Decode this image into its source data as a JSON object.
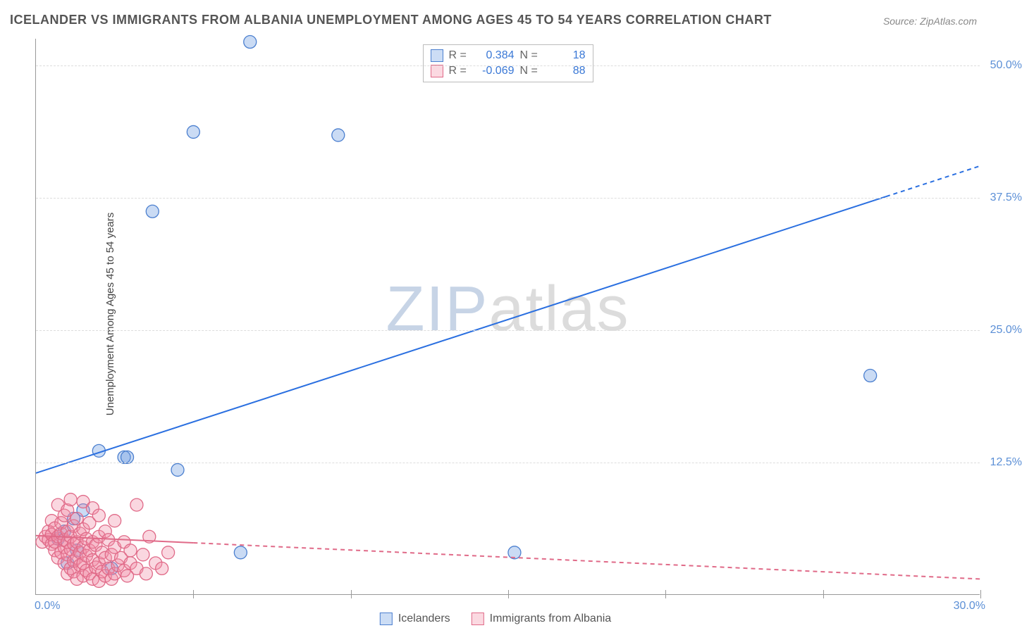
{
  "title": "ICELANDER VS IMMIGRANTS FROM ALBANIA UNEMPLOYMENT AMONG AGES 45 TO 54 YEARS CORRELATION CHART",
  "source_prefix": "Source: ",
  "source": "ZipAtlas.com",
  "ylabel": "Unemployment Among Ages 45 to 54 years",
  "watermark_a": "ZIP",
  "watermark_b": "atlas",
  "chart": {
    "type": "scatter",
    "xlim": [
      0,
      30
    ],
    "ylim": [
      0,
      52.5
    ],
    "x_corner_left": "0.0%",
    "x_corner_right": "30.0%",
    "x_ticks": [
      5,
      10,
      15,
      20,
      25,
      30
    ],
    "y_ticks": [
      {
        "v": 12.5,
        "label": "12.5%"
      },
      {
        "v": 25.0,
        "label": "25.0%"
      },
      {
        "v": 37.5,
        "label": "37.5%"
      },
      {
        "v": 50.0,
        "label": "50.0%"
      }
    ],
    "grid_color": "#dddddd",
    "axis_color": "#999999",
    "background_color": "#ffffff",
    "marker_radius": 9,
    "marker_fill_opacity": 0.35,
    "series": [
      {
        "name": "Icelanders",
        "color": "#6699e0",
        "stroke": "#4b7fcf",
        "R": "0.384",
        "N": "18",
        "trend": {
          "x1": 0,
          "y1": 11.5,
          "x2": 30,
          "y2": 40.5,
          "solid_until_x": 27,
          "color": "#2a6fe0",
          "width": 2
        },
        "points": [
          [
            6.8,
            52.2
          ],
          [
            5.0,
            43.7
          ],
          [
            9.6,
            43.4
          ],
          [
            3.7,
            36.2
          ],
          [
            26.5,
            20.7
          ],
          [
            2.0,
            13.6
          ],
          [
            2.8,
            13.0
          ],
          [
            2.9,
            13.0
          ],
          [
            4.5,
            11.8
          ],
          [
            1.5,
            8.0
          ],
          [
            1.2,
            7.2
          ],
          [
            0.9,
            6.0
          ],
          [
            0.7,
            5.3
          ],
          [
            6.5,
            4.0
          ],
          [
            15.2,
            4.0
          ],
          [
            2.4,
            2.5
          ],
          [
            1.0,
            3.0
          ],
          [
            1.3,
            4.2
          ]
        ]
      },
      {
        "name": "Immigrants from Albania",
        "color": "#f28ca6",
        "stroke": "#e06a88",
        "R": "-0.069",
        "N": "88",
        "trend": {
          "x1": 0,
          "y1": 5.6,
          "x2": 30,
          "y2": 1.5,
          "solid_until_x": 5,
          "color": "#e06a88",
          "width": 2
        },
        "points": [
          [
            0.2,
            5.0
          ],
          [
            0.3,
            5.5
          ],
          [
            0.4,
            5.2
          ],
          [
            0.4,
            6.0
          ],
          [
            0.5,
            4.8
          ],
          [
            0.5,
            5.7
          ],
          [
            0.5,
            7.0
          ],
          [
            0.6,
            4.2
          ],
          [
            0.6,
            5.0
          ],
          [
            0.6,
            6.3
          ],
          [
            0.7,
            3.5
          ],
          [
            0.7,
            5.5
          ],
          [
            0.7,
            8.5
          ],
          [
            0.8,
            4.0
          ],
          [
            0.8,
            5.8
          ],
          [
            0.8,
            6.8
          ],
          [
            0.9,
            3.0
          ],
          [
            0.9,
            4.5
          ],
          [
            0.9,
            5.2
          ],
          [
            0.9,
            7.5
          ],
          [
            1.0,
            2.0
          ],
          [
            1.0,
            3.8
          ],
          [
            1.0,
            5.0
          ],
          [
            1.0,
            6.0
          ],
          [
            1.0,
            8.0
          ],
          [
            1.1,
            2.5
          ],
          [
            1.1,
            4.3
          ],
          [
            1.1,
            5.5
          ],
          [
            1.1,
            9.0
          ],
          [
            1.2,
            2.2
          ],
          [
            1.2,
            3.2
          ],
          [
            1.2,
            4.8
          ],
          [
            1.2,
            6.5
          ],
          [
            1.3,
            1.5
          ],
          [
            1.3,
            3.5
          ],
          [
            1.3,
            5.0
          ],
          [
            1.3,
            7.2
          ],
          [
            1.4,
            2.8
          ],
          [
            1.4,
            4.0
          ],
          [
            1.4,
            5.8
          ],
          [
            1.5,
            1.8
          ],
          [
            1.5,
            3.0
          ],
          [
            1.5,
            4.5
          ],
          [
            1.5,
            6.2
          ],
          [
            1.5,
            8.8
          ],
          [
            1.6,
            2.3
          ],
          [
            1.6,
            3.7
          ],
          [
            1.6,
            5.3
          ],
          [
            1.7,
            2.0
          ],
          [
            1.7,
            4.2
          ],
          [
            1.7,
            6.8
          ],
          [
            1.8,
            1.5
          ],
          [
            1.8,
            3.3
          ],
          [
            1.8,
            5.0
          ],
          [
            1.8,
            8.2
          ],
          [
            1.9,
            2.6
          ],
          [
            1.9,
            4.7
          ],
          [
            2.0,
            1.3
          ],
          [
            2.0,
            3.0
          ],
          [
            2.0,
            5.5
          ],
          [
            2.0,
            7.5
          ],
          [
            2.1,
            2.2
          ],
          [
            2.1,
            4.0
          ],
          [
            2.2,
            1.8
          ],
          [
            2.2,
            3.5
          ],
          [
            2.2,
            6.0
          ],
          [
            2.3,
            2.5
          ],
          [
            2.3,
            5.2
          ],
          [
            2.4,
            1.5
          ],
          [
            2.4,
            3.8
          ],
          [
            2.5,
            2.0
          ],
          [
            2.5,
            4.5
          ],
          [
            2.5,
            7.0
          ],
          [
            2.6,
            2.8
          ],
          [
            2.7,
            3.5
          ],
          [
            2.8,
            2.3
          ],
          [
            2.8,
            5.0
          ],
          [
            2.9,
            1.8
          ],
          [
            3.0,
            3.0
          ],
          [
            3.0,
            4.2
          ],
          [
            3.2,
            2.5
          ],
          [
            3.2,
            8.5
          ],
          [
            3.4,
            3.8
          ],
          [
            3.5,
            2.0
          ],
          [
            3.6,
            5.5
          ],
          [
            3.8,
            3.0
          ],
          [
            4.0,
            2.5
          ],
          [
            4.2,
            4.0
          ]
        ]
      }
    ],
    "stats_legend_labels": {
      "R": "R =",
      "N": "N ="
    },
    "bottom_legend_title": ""
  }
}
